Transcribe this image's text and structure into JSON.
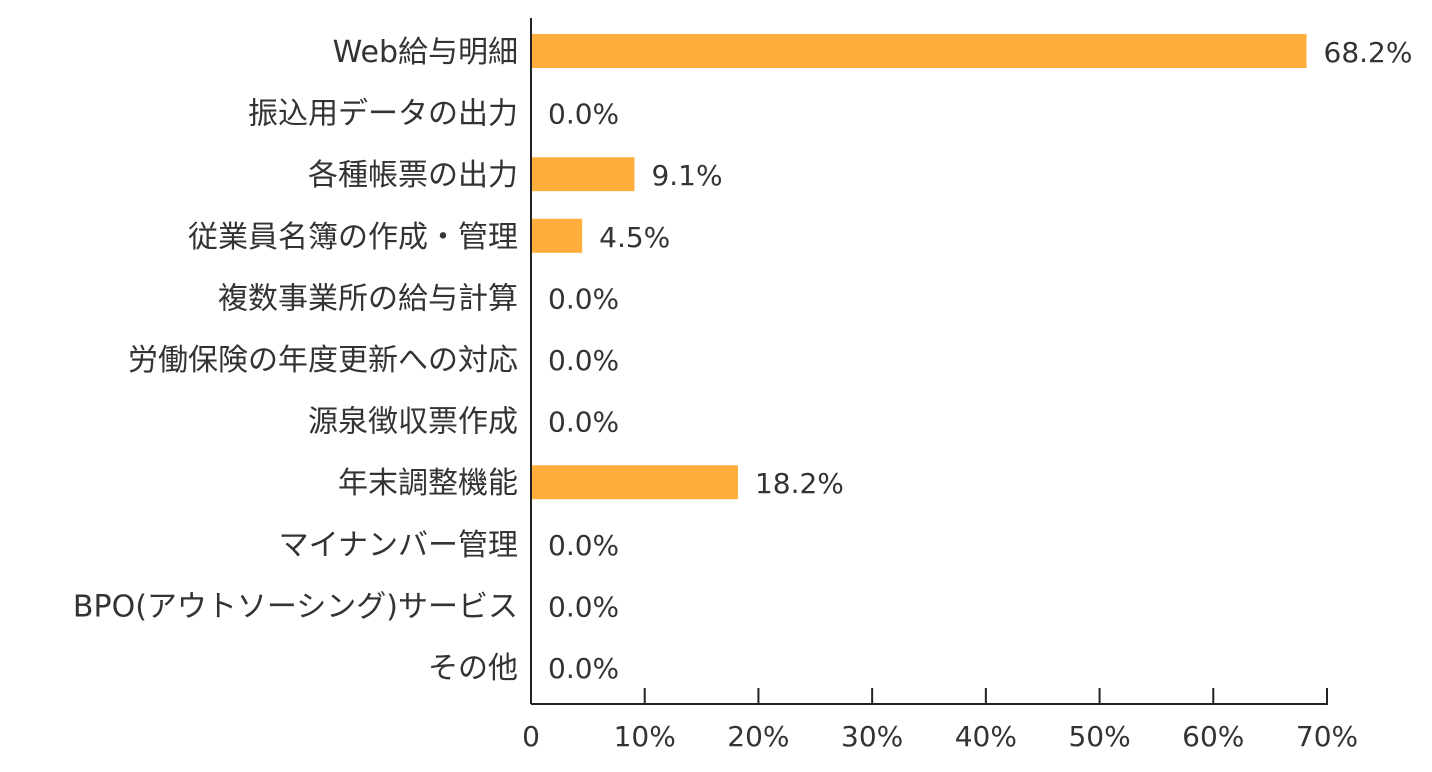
{
  "chart_data": {
    "type": "bar",
    "orientation": "horizontal",
    "categories": [
      "Web給与明細",
      "振込用データの出力",
      "各種帳票の出力",
      "従業員名簿の作成・管理",
      "複数事業所の給与計算",
      "労働保険の年度更新への対応",
      "源泉徴収票作成",
      "年末調整機能",
      "マイナンバー管理",
      "BPO(アウトソーシング)サービス",
      "その他"
    ],
    "values": [
      68.2,
      0.0,
      9.1,
      4.5,
      0.0,
      0.0,
      0.0,
      18.2,
      0.0,
      0.0,
      0.0
    ],
    "data_labels": [
      "68.2%",
      "0.0%",
      "9.1%",
      "4.5%",
      "0.0%",
      "0.0%",
      "0.0%",
      "18.2%",
      "0.0%",
      "0.0%",
      "0.0%"
    ],
    "xlim": [
      0,
      70
    ],
    "x_ticks": [
      0,
      10,
      20,
      30,
      40,
      50,
      60,
      70
    ],
    "x_tick_labels": [
      "0",
      "10%",
      "20%",
      "30%",
      "40%",
      "50%",
      "60%",
      "70%"
    ],
    "title": "",
    "xlabel": "",
    "ylabel": "",
    "grid": false,
    "legend": "none",
    "colors": {
      "bar": "#FFAE3B",
      "axis": "#222222",
      "text": "#333333"
    }
  }
}
